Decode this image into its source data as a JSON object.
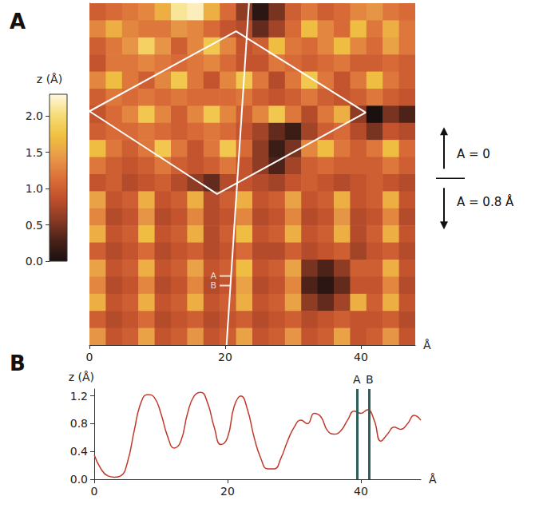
{
  "chart_data": [
    {
      "type": "heatmap",
      "panel": "A",
      "x_label": "Å",
      "xlim": [
        0,
        48
      ],
      "xticks": [
        0,
        20,
        40
      ],
      "ylim": [
        0,
        50
      ],
      "tick_labels": "x",
      "grid": false,
      "x": [
        1.2,
        3.6,
        6,
        8.4,
        10.8,
        13.2,
        15.6,
        18,
        20.4,
        22.8,
        25.2,
        27.6,
        30,
        32.4,
        34.8,
        37.2,
        39.6,
        42,
        44.4,
        46.8
      ],
      "y": [
        48.75,
        46.25,
        43.75,
        41.25,
        38.75,
        36.25,
        33.75,
        31.25,
        28.75,
        26.25,
        23.75,
        21.25,
        18.75,
        16.25,
        13.75,
        11.25,
        8.75,
        6.25,
        3.75,
        1.25
      ],
      "z": [
        [
          1.0,
          1.1,
          1.2,
          1.3,
          1.6,
          2.1,
          2.2,
          1.6,
          1.1,
          0.6,
          0.1,
          0.5,
          1.0,
          1.2,
          1.0,
          1.1,
          1.3,
          1.4,
          1.2,
          1.1
        ],
        [
          1.3,
          1.6,
          1.3,
          1.2,
          1.2,
          1.4,
          1.3,
          1.1,
          0.9,
          0.8,
          0.4,
          0.7,
          1.1,
          1.7,
          1.3,
          1.1,
          1.7,
          1.2,
          1.6,
          1.2
        ],
        [
          1.0,
          1.2,
          1.4,
          1.9,
          1.4,
          1.0,
          1.3,
          1.8,
          1.3,
          0.9,
          1.0,
          1.7,
          1.2,
          1.1,
          1.3,
          1.7,
          1.3,
          1.1,
          1.5,
          1.2
        ],
        [
          0.9,
          1.2,
          1.2,
          1.3,
          1.2,
          1.1,
          1.2,
          1.3,
          1.1,
          0.9,
          0.9,
          1.2,
          1.1,
          1.0,
          1.1,
          1.2,
          1.0,
          1.0,
          1.1,
          1.0
        ],
        [
          1.3,
          1.7,
          1.2,
          1.0,
          1.3,
          1.8,
          1.2,
          0.9,
          1.3,
          1.8,
          1.2,
          0.8,
          1.2,
          1.8,
          1.2,
          0.9,
          1.2,
          1.7,
          1.2,
          1.0
        ],
        [
          1.0,
          1.2,
          1.1,
          1.2,
          1.1,
          1.2,
          1.1,
          1.1,
          1.1,
          1.2,
          1.0,
          0.9,
          1.0,
          1.2,
          1.0,
          0.9,
          1.0,
          1.2,
          1.0,
          0.9
        ],
        [
          0.9,
          1.1,
          1.3,
          1.8,
          1.3,
          1.0,
          1.3,
          1.8,
          1.3,
          1.0,
          1.3,
          1.8,
          1.2,
          0.8,
          1.2,
          1.6,
          0.6,
          0.0,
          0.5,
          0.3
        ],
        [
          1.0,
          1.1,
          1.1,
          1.2,
          1.1,
          1.0,
          1.1,
          1.2,
          1.1,
          0.9,
          0.7,
          0.4,
          0.2,
          0.7,
          1.0,
          1.1,
          0.8,
          0.5,
          0.9,
          0.8
        ],
        [
          1.7,
          1.2,
          1.0,
          1.2,
          1.8,
          1.2,
          0.9,
          1.2,
          1.8,
          1.1,
          0.6,
          0.2,
          0.5,
          1.3,
          1.7,
          1.2,
          1.0,
          1.2,
          1.7,
          1.1
        ],
        [
          1.2,
          1.0,
          0.9,
          1.0,
          1.2,
          1.0,
          0.9,
          1.0,
          1.2,
          0.9,
          0.6,
          0.3,
          0.7,
          1.0,
          1.1,
          1.0,
          1.0,
          1.0,
          1.2,
          1.0
        ],
        [
          0.9,
          1.0,
          0.8,
          0.9,
          1.0,
          0.8,
          0.6,
          0.4,
          0.8,
          0.9,
          0.8,
          0.7,
          0.9,
          1.0,
          0.9,
          0.8,
          0.9,
          1.0,
          0.9,
          0.8
        ],
        [
          1.5,
          0.9,
          1.0,
          1.6,
          0.9,
          1.0,
          1.6,
          0.8,
          1.0,
          1.6,
          0.9,
          1.0,
          1.5,
          0.9,
          1.0,
          1.6,
          0.9,
          1.0,
          1.6,
          0.9
        ],
        [
          1.3,
          0.8,
          0.9,
          1.4,
          0.8,
          0.9,
          1.3,
          0.8,
          0.9,
          1.3,
          0.8,
          0.9,
          1.3,
          0.8,
          0.9,
          1.4,
          0.8,
          0.9,
          1.3,
          0.8
        ],
        [
          1.6,
          0.9,
          1.0,
          1.7,
          0.9,
          1.0,
          1.6,
          0.8,
          1.0,
          1.7,
          0.9,
          1.0,
          1.6,
          0.9,
          1.0,
          1.6,
          0.8,
          1.0,
          1.6,
          0.9
        ],
        [
          1.0,
          0.8,
          0.9,
          1.1,
          0.8,
          0.9,
          1.0,
          0.8,
          0.9,
          1.1,
          0.8,
          0.8,
          1.0,
          0.8,
          0.9,
          1.0,
          0.7,
          0.9,
          1.0,
          0.8
        ],
        [
          1.5,
          0.9,
          1.0,
          1.6,
          0.9,
          1.0,
          1.5,
          0.9,
          1.0,
          1.7,
          0.9,
          1.0,
          1.5,
          0.5,
          0.3,
          0.6,
          1.0,
          1.0,
          1.6,
          0.9
        ],
        [
          1.3,
          0.8,
          0.9,
          1.3,
          0.8,
          0.9,
          1.3,
          0.8,
          0.9,
          1.5,
          0.8,
          0.9,
          1.3,
          0.3,
          0.1,
          0.4,
          0.9,
          0.9,
          1.3,
          0.8
        ],
        [
          1.6,
          0.9,
          1.0,
          1.6,
          0.9,
          1.0,
          1.6,
          0.9,
          1.0,
          1.6,
          0.9,
          1.0,
          1.5,
          0.6,
          0.4,
          0.7,
          1.6,
          1.0,
          1.6,
          0.9
        ],
        [
          1.0,
          0.8,
          0.9,
          1.1,
          0.8,
          0.9,
          1.0,
          0.8,
          0.9,
          1.0,
          0.8,
          0.9,
          1.0,
          0.8,
          0.9,
          1.0,
          0.9,
          0.9,
          1.0,
          0.8
        ],
        [
          1.4,
          0.9,
          1.0,
          1.5,
          0.9,
          1.0,
          1.4,
          0.9,
          1.0,
          1.5,
          0.9,
          1.0,
          1.4,
          0.9,
          1.0,
          1.5,
          0.9,
          1.0,
          1.4,
          0.9
        ]
      ],
      "colorbar": {
        "title": "z (Å)",
        "range": [
          0,
          2.3
        ],
        "ticks": [
          {
            "value": 0,
            "label": "0.0"
          },
          0.5,
          {
            "value": 1,
            "label": "1.0"
          },
          1.5,
          {
            "value": 2,
            "label": "2.0"
          }
        ]
      },
      "cell": [
        [
          0,
          34.2
        ],
        [
          21.6,
          45.9
        ],
        [
          40.7,
          34.0
        ],
        [
          18.8,
          22.1
        ],
        [
          0,
          34.2
        ]
      ],
      "line": [
        [
          20.2,
          0
        ],
        [
          23.5,
          50
        ]
      ],
      "marks": [
        {
          "label": "A",
          "x": 20.0,
          "y": 10.1
        },
        {
          "label": "B",
          "x": 20.0,
          "y": 8.7
        }
      ],
      "regions": {
        "boundary_y": 24.4,
        "above": "A = 0",
        "below": "A = 0.8 Å"
      }
    },
    {
      "type": "line",
      "panel": "B",
      "x_label": "Å",
      "y_label": "z (Å)",
      "xlim": [
        0,
        49
      ],
      "xticks": [
        0,
        20,
        40
      ],
      "ylim": [
        0,
        1.3
      ],
      "yticks": [
        {
          "value": 0,
          "label": "0.0"
        },
        0.4,
        0.8,
        1.2
      ],
      "grid": false,
      "color": "#c0392b",
      "x": [
        0,
        1,
        2,
        3,
        4,
        5,
        6,
        7,
        8,
        9,
        10,
        11,
        12,
        13,
        14,
        15,
        16,
        17,
        18,
        19,
        20,
        21,
        22,
        23,
        24,
        25,
        26,
        27,
        28,
        29,
        30,
        31,
        32,
        33,
        34,
        35,
        36,
        37,
        38,
        39,
        40,
        41,
        42,
        43,
        44,
        45,
        46,
        47,
        48,
        49
      ],
      "values": [
        0.35,
        0.15,
        0.05,
        0.03,
        0.05,
        0.25,
        0.7,
        1.1,
        1.22,
        1.18,
        0.95,
        0.62,
        0.45,
        0.55,
        0.95,
        1.2,
        1.25,
        1.1,
        0.75,
        0.5,
        0.6,
        1.05,
        1.2,
        1.0,
        0.6,
        0.3,
        0.15,
        0.15,
        0.3,
        0.55,
        0.75,
        0.85,
        0.8,
        0.95,
        0.9,
        0.7,
        0.65,
        0.7,
        0.85,
        0.98,
        0.95,
        1.0,
        0.85,
        0.55,
        0.65,
        0.75,
        0.72,
        0.8,
        0.92,
        0.85
      ],
      "markers": [
        {
          "label": "A",
          "x": 39.4,
          "color": "#2f5f5a"
        },
        {
          "label": "B",
          "x": 41.3,
          "color": "#2f5f5a"
        }
      ]
    }
  ]
}
